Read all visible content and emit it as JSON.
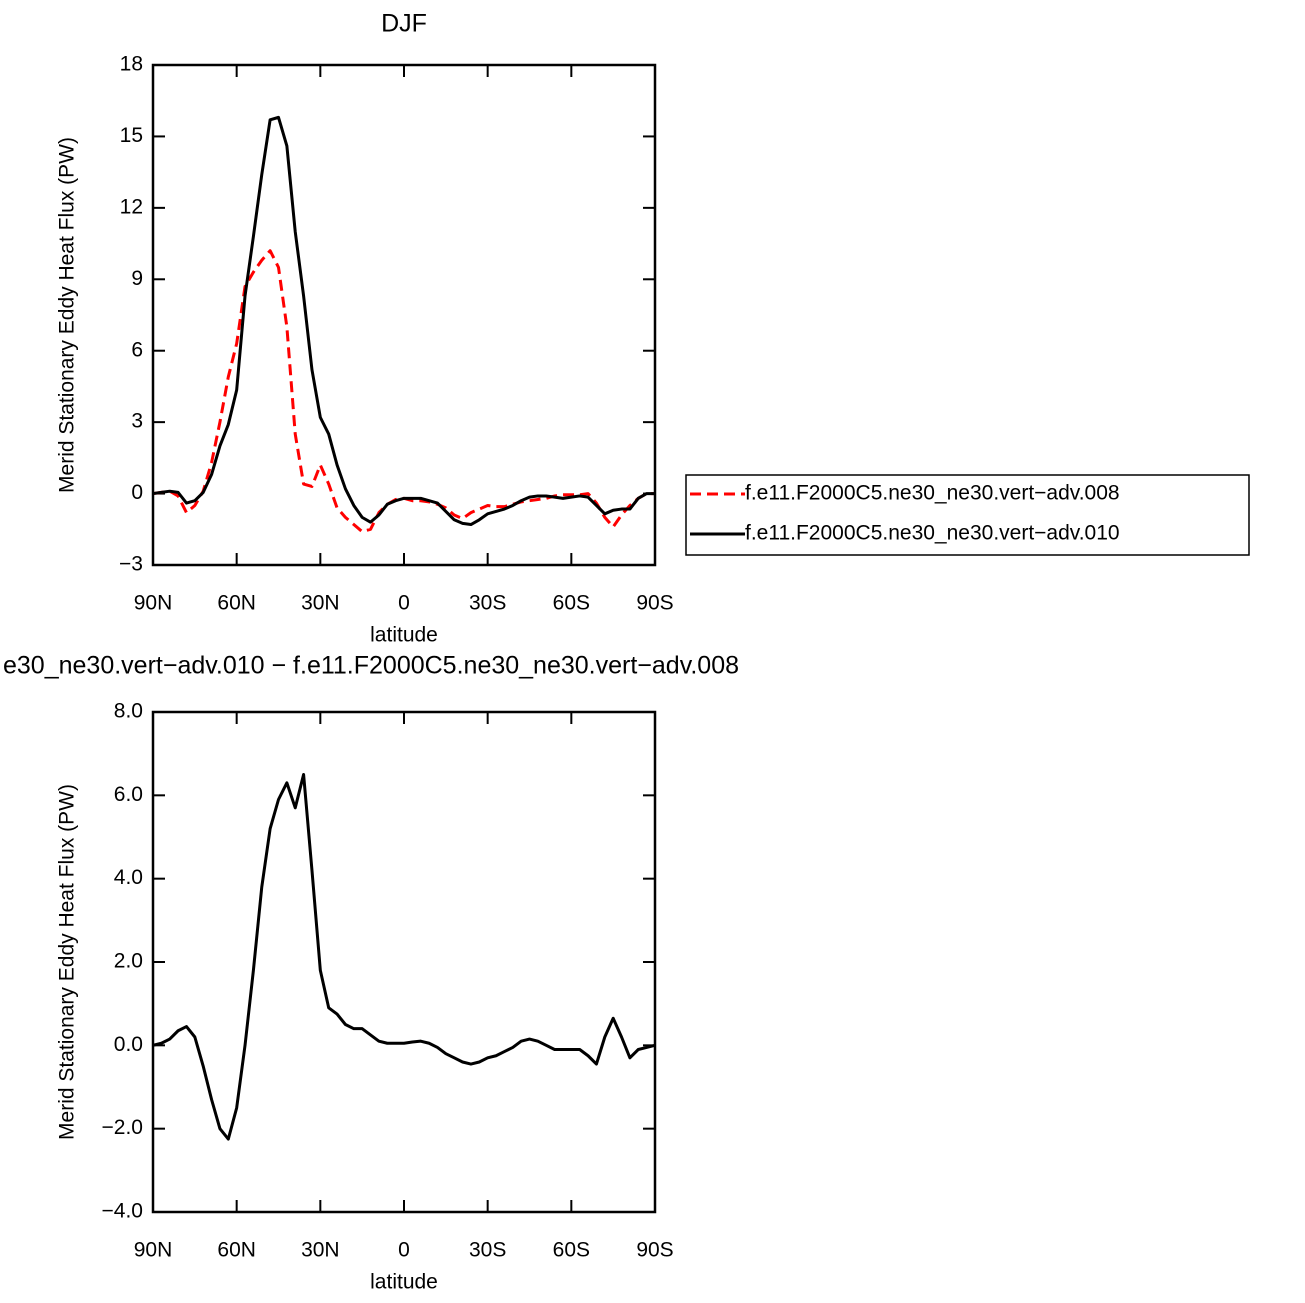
{
  "chart_data": [
    {
      "type": "line",
      "title": "DJF",
      "xlabel": "latitude",
      "ylabel": "Merid Stationary Eddy Heat Flux (PW)",
      "x": [
        90,
        87,
        84,
        81,
        78,
        75,
        72,
        69,
        66,
        63,
        60,
        57,
        54,
        51,
        48,
        45,
        42,
        39,
        36,
        33,
        30,
        27,
        24,
        21,
        18,
        15,
        12,
        9,
        6,
        3,
        0,
        -3,
        -6,
        -9,
        -12,
        -15,
        -18,
        -21,
        -24,
        -27,
        -30,
        -33,
        -36,
        -39,
        -42,
        -45,
        -48,
        -51,
        -54,
        -57,
        -60,
        -63,
        -66,
        -69,
        -72,
        -75,
        -78,
        -81,
        -84,
        -87,
        -90
      ],
      "xlim": [
        90,
        -90
      ],
      "xticks": [
        {
          "value": 90,
          "label": "90N"
        },
        {
          "value": 60,
          "label": "60N"
        },
        {
          "value": 30,
          "label": "30N"
        },
        0,
        {
          "value": -30,
          "label": "30S"
        },
        {
          "value": -60,
          "label": "60S"
        },
        {
          "value": -90,
          "label": "90S"
        }
      ],
      "ylim": [
        -3,
        18
      ],
      "yticks": [
        {
          "value": -3,
          "label": "−3"
        },
        0,
        3,
        6,
        9,
        12,
        15,
        18
      ],
      "legend": "right",
      "series": [
        {
          "name": "f.e11.F2000C5.ne30_ne30.vert−adv.008",
          "color": "#ff0000",
          "linestyle": "dashed",
          "values": [
            0,
            0.05,
            0.1,
            -0.1,
            -0.8,
            -0.5,
            0.1,
            1.3,
            3.0,
            4.9,
            6.3,
            8.7,
            9.3,
            9.8,
            10.2,
            9.5,
            7.0,
            2.5,
            0.4,
            0.3,
            1.2,
            0.4,
            -0.6,
            -1.0,
            -1.3,
            -1.6,
            -1.5,
            -0.8,
            -0.45,
            -0.25,
            -0.2,
            -0.3,
            -0.3,
            -0.35,
            -0.45,
            -0.6,
            -0.9,
            -1.05,
            -0.8,
            -0.65,
            -0.5,
            -0.55,
            -0.55,
            -0.45,
            -0.35,
            -0.3,
            -0.25,
            -0.2,
            -0.1,
            -0.05,
            -0.05,
            -0.05,
            0.0,
            -0.4,
            -1.0,
            -1.4,
            -0.9,
            -0.5,
            -0.2,
            0.0,
            0.0
          ]
        },
        {
          "name": "f.e11.F2000C5.ne30_ne30.vert−adv.010",
          "color": "#000000",
          "linestyle": "solid",
          "values": [
            0,
            0.05,
            0.1,
            0.05,
            -0.4,
            -0.3,
            0.05,
            0.8,
            2.0,
            2.9,
            4.35,
            8.3,
            10.8,
            13.4,
            15.7,
            15.8,
            14.6,
            11.0,
            8.3,
            5.2,
            3.2,
            2.5,
            1.2,
            0.2,
            -0.5,
            -1.0,
            -1.2,
            -0.9,
            -0.45,
            -0.3,
            -0.2,
            -0.2,
            -0.2,
            -0.3,
            -0.4,
            -0.75,
            -1.1,
            -1.25,
            -1.3,
            -1.1,
            -0.85,
            -0.75,
            -0.65,
            -0.5,
            -0.3,
            -0.15,
            -0.1,
            -0.1,
            -0.15,
            -0.2,
            -0.15,
            -0.1,
            -0.15,
            -0.5,
            -0.85,
            -0.7,
            -0.65,
            -0.65,
            -0.2,
            0.0,
            0.0
          ]
        }
      ]
    },
    {
      "type": "line",
      "title": "e30_ne30.vert−adv.010 − f.e11.F2000C5.ne30_ne30.vert−adv.008",
      "xlabel": "latitude",
      "ylabel": "Merid Stationary Eddy Heat Flux (PW)",
      "x": [
        90,
        87,
        84,
        81,
        78,
        75,
        72,
        69,
        66,
        63,
        60,
        57,
        54,
        51,
        48,
        45,
        42,
        39,
        36,
        33,
        30,
        27,
        24,
        21,
        18,
        15,
        12,
        9,
        6,
        3,
        0,
        -3,
        -6,
        -9,
        -12,
        -15,
        -18,
        -21,
        -24,
        -27,
        -30,
        -33,
        -36,
        -39,
        -42,
        -45,
        -48,
        -51,
        -54,
        -57,
        -60,
        -63,
        -66,
        -69,
        -72,
        -75,
        -78,
        -81,
        -84,
        -87,
        -90
      ],
      "xlim": [
        90,
        -90
      ],
      "xticks": [
        {
          "value": 90,
          "label": "90N"
        },
        {
          "value": 60,
          "label": "60N"
        },
        {
          "value": 30,
          "label": "30N"
        },
        0,
        {
          "value": -30,
          "label": "30S"
        },
        {
          "value": -60,
          "label": "60S"
        },
        {
          "value": -90,
          "label": "90S"
        }
      ],
      "ylim": [
        -4,
        8
      ],
      "yticks": [
        {
          "value": -4,
          "label": "−4.0"
        },
        {
          "value": -2,
          "label": "−2.0"
        },
        {
          "value": 0,
          "label": "0.0"
        },
        {
          "value": 2,
          "label": "2.0"
        },
        {
          "value": 4,
          "label": "4.0"
        },
        {
          "value": 6,
          "label": "6.0"
        },
        {
          "value": 8,
          "label": "8.0"
        }
      ],
      "series": [
        {
          "color": "#000000",
          "linestyle": "solid",
          "values": [
            0,
            0.05,
            0.15,
            0.35,
            0.45,
            0.2,
            -0.5,
            -1.3,
            -2.0,
            -2.25,
            -1.5,
            0.0,
            1.8,
            3.8,
            5.2,
            5.9,
            6.3,
            5.7,
            6.5,
            4.2,
            1.8,
            0.9,
            0.75,
            0.5,
            0.4,
            0.4,
            0.25,
            0.1,
            0.05,
            0.05,
            0.05,
            0.08,
            0.1,
            0.05,
            -0.05,
            -0.2,
            -0.3,
            -0.4,
            -0.45,
            -0.4,
            -0.3,
            -0.25,
            -0.15,
            -0.05,
            0.1,
            0.15,
            0.1,
            0.0,
            -0.1,
            -0.1,
            -0.1,
            -0.1,
            -0.25,
            -0.45,
            0.2,
            0.65,
            0.2,
            -0.3,
            -0.1,
            -0.05,
            0.0
          ]
        }
      ]
    }
  ]
}
